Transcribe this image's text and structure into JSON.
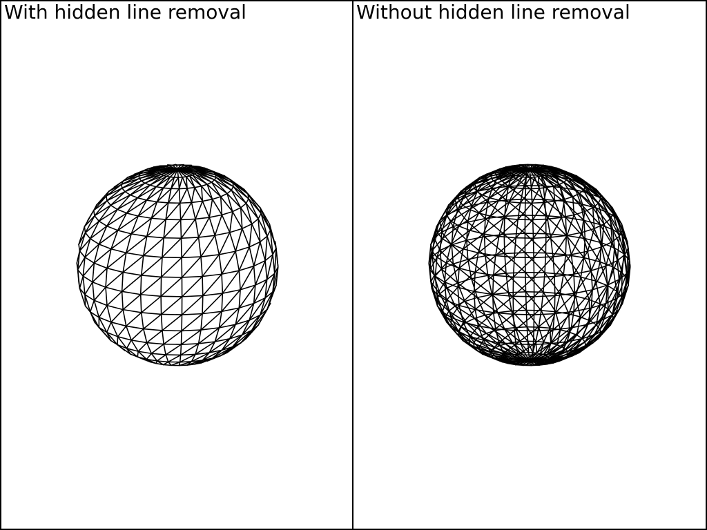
{
  "panels": [
    {
      "title": "With hidden line removal",
      "hidden_line_removal": true
    },
    {
      "title": "Without hidden line removal",
      "hidden_line_removal": false
    }
  ],
  "mesh": {
    "type": "tessellated sphere wireframe",
    "latitude_bands": 16,
    "longitude_segments": 30,
    "line_color": "#000000",
    "background_color": "#ffffff"
  }
}
